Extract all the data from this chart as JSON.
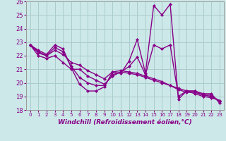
{
  "title": "",
  "xlabel": "Windchill (Refroidissement éolien,°C)",
  "ylabel": "",
  "xlim": [
    -0.5,
    23.5
  ],
  "ylim": [
    18,
    26
  ],
  "yticks": [
    18,
    19,
    20,
    21,
    22,
    23,
    24,
    25,
    26
  ],
  "xticks": [
    0,
    1,
    2,
    3,
    4,
    5,
    6,
    7,
    8,
    9,
    10,
    11,
    12,
    13,
    14,
    15,
    16,
    17,
    18,
    19,
    20,
    21,
    22,
    23
  ],
  "bg_color": "#cce8e8",
  "grid_color": "#aacccc",
  "line_color": "#880088",
  "line_width": 1.0,
  "marker": "D",
  "marker_size": 2.0,
  "xlabel_fontsize": 6.5,
  "xtick_fontsize": 5.0,
  "ytick_fontsize": 6.0,
  "series": [
    [
      22.8,
      22.4,
      22.1,
      22.8,
      22.5,
      21.1,
      19.9,
      19.4,
      19.4,
      19.7,
      20.8,
      20.7,
      21.6,
      23.2,
      20.7,
      25.7,
      25.0,
      25.8,
      18.8,
      19.4,
      19.4,
      19.2,
      19.2,
      18.5
    ],
    [
      22.8,
      22.0,
      21.8,
      22.0,
      21.5,
      21.0,
      21.0,
      20.5,
      20.2,
      19.9,
      20.5,
      20.8,
      20.7,
      20.6,
      20.4,
      20.2,
      20.0,
      19.8,
      19.6,
      19.4,
      19.2,
      19.0,
      18.9,
      18.7
    ],
    [
      22.8,
      22.2,
      22.0,
      22.4,
      22.1,
      21.5,
      21.3,
      20.9,
      20.6,
      20.3,
      20.8,
      20.9,
      20.8,
      20.7,
      20.5,
      20.3,
      20.1,
      19.8,
      19.5,
      19.3,
      19.3,
      19.1,
      19.0,
      18.7
    ],
    [
      22.8,
      22.3,
      22.0,
      22.6,
      22.3,
      21.2,
      20.4,
      20.0,
      19.8,
      19.8,
      20.6,
      20.8,
      21.2,
      21.9,
      20.6,
      22.8,
      22.5,
      22.8,
      19.0,
      19.4,
      19.4,
      19.1,
      19.1,
      18.6
    ]
  ]
}
